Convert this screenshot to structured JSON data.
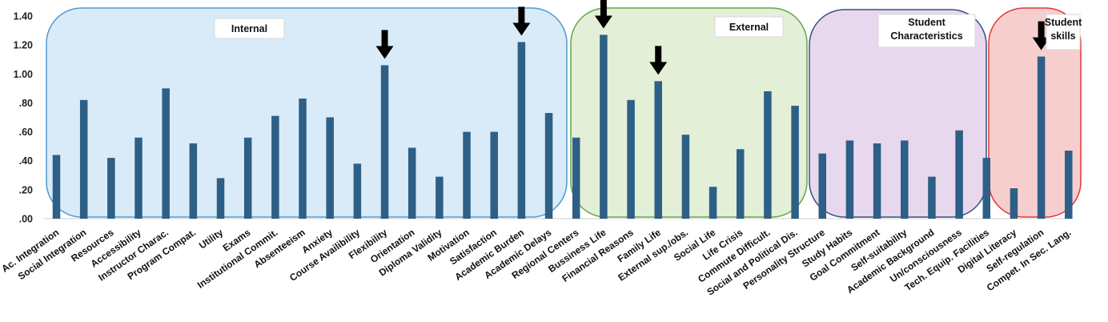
{
  "chart_data": {
    "type": "bar",
    "title": "",
    "xlabel": "",
    "ylabel": "",
    "ylim": [
      0,
      1.4
    ],
    "y_ticks": [
      ".00",
      ".20",
      ".40",
      ".60",
      ".80",
      "1.00",
      "1.20",
      "1.40"
    ],
    "bar_color": "#2e5f86",
    "grid": false,
    "categories": [
      "Ac. Integration",
      "Social Integration",
      "Resources",
      "Accessibility",
      "Instructor Charac.",
      "Program Compat.",
      "Utility",
      "Exams",
      "Institutional Commit.",
      "Absenteeism",
      "Anxiety",
      "Course Availibility",
      "Flexibility",
      "Orientation",
      "Diploma Validity",
      "Motivation",
      "Satisfaction",
      "Academic Burden",
      "Academic Delays",
      "Regional Centers",
      "Bussiness Life",
      "Financial Reasons",
      "Family Life",
      "External sup./obs.",
      "Social Life",
      "Life Crisis",
      "Commute Difficult.",
      "Social and Political Dis.",
      "Personality Structure",
      "Study Habits",
      "Goal Commitment",
      "Self-suitability",
      "Academic Background",
      "Un/consciousness",
      "Tech. Equip. Facilities",
      "Digital Literacy",
      "Self-regulation",
      "Compet. In Sec. Lang."
    ],
    "values": [
      0.44,
      0.82,
      0.42,
      0.56,
      0.9,
      0.52,
      0.28,
      0.56,
      0.71,
      0.83,
      0.7,
      0.38,
      1.06,
      0.49,
      0.29,
      0.6,
      0.6,
      1.22,
      0.73,
      0.56,
      1.27,
      0.82,
      0.95,
      0.58,
      0.22,
      0.48,
      0.88,
      0.78,
      0.45,
      0.54,
      0.52,
      0.54,
      0.29,
      0.61,
      0.42,
      0.21,
      1.12,
      0.47
    ],
    "groups": [
      {
        "label": "Internal",
        "first": 0,
        "last": 18,
        "fill": "#d9ebf8",
        "stroke": "#4d9bd0"
      },
      {
        "label": "External",
        "first": 20,
        "last": 27,
        "fill": "#e3efd7",
        "stroke": "#62a648"
      },
      {
        "label": "Student Characteristics",
        "first": 28,
        "last": 34,
        "fill": "#e8d8ee",
        "stroke": "#36507c"
      },
      {
        "label": "Student skills",
        "first": 35,
        "last": 37,
        "fill": "#f7cece",
        "stroke": "#e0373c"
      }
    ],
    "highlighted": [
      "Flexibility",
      "Academic Burden",
      "Bussiness Life",
      "Family Life",
      "Self-regulation"
    ]
  }
}
